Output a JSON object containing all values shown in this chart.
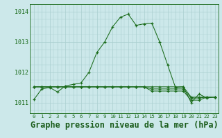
{
  "title": "Graphe pression niveau de la mer (hPa)",
  "hours": [
    0,
    1,
    2,
    3,
    4,
    5,
    6,
    7,
    8,
    9,
    10,
    11,
    12,
    13,
    14,
    15,
    16,
    17,
    18,
    19,
    20,
    21,
    22,
    23
  ],
  "series1": [
    1011.1,
    1011.45,
    1011.5,
    1011.35,
    1011.55,
    1011.6,
    1011.65,
    1012.0,
    1012.65,
    1013.0,
    1013.5,
    1013.82,
    1013.92,
    1013.55,
    1013.6,
    1013.62,
    1013.0,
    1012.25,
    1011.5,
    1011.52,
    1011.0,
    1011.28,
    1011.15,
    1011.18
  ],
  "series2": [
    1011.52,
    1011.52,
    1011.52,
    1011.52,
    1011.52,
    1011.52,
    1011.52,
    1011.52,
    1011.52,
    1011.52,
    1011.52,
    1011.52,
    1011.52,
    1011.52,
    1011.52,
    1011.52,
    1011.52,
    1011.52,
    1011.52,
    1011.52,
    1011.18,
    1011.18,
    1011.18,
    1011.18
  ],
  "series3": [
    1011.52,
    1011.52,
    1011.52,
    1011.52,
    1011.52,
    1011.52,
    1011.52,
    1011.52,
    1011.52,
    1011.52,
    1011.52,
    1011.52,
    1011.52,
    1011.52,
    1011.52,
    1011.45,
    1011.45,
    1011.45,
    1011.45,
    1011.45,
    1011.15,
    1011.15,
    1011.18,
    1011.18
  ],
  "series4": [
    1011.52,
    1011.52,
    1011.52,
    1011.52,
    1011.52,
    1011.52,
    1011.52,
    1011.52,
    1011.52,
    1011.52,
    1011.52,
    1011.52,
    1011.52,
    1011.52,
    1011.52,
    1011.38,
    1011.38,
    1011.38,
    1011.38,
    1011.38,
    1011.08,
    1011.08,
    1011.18,
    1011.18
  ],
  "line_color": "#1a6b1a",
  "bg_color": "#cce8ea",
  "grid_color": "#aacfcf",
  "ylim": [
    1010.65,
    1014.25
  ],
  "yticks": [
    1011,
    1012,
    1013,
    1014
  ],
  "title_color": "#1a5c1a",
  "title_fontsize": 8.5
}
